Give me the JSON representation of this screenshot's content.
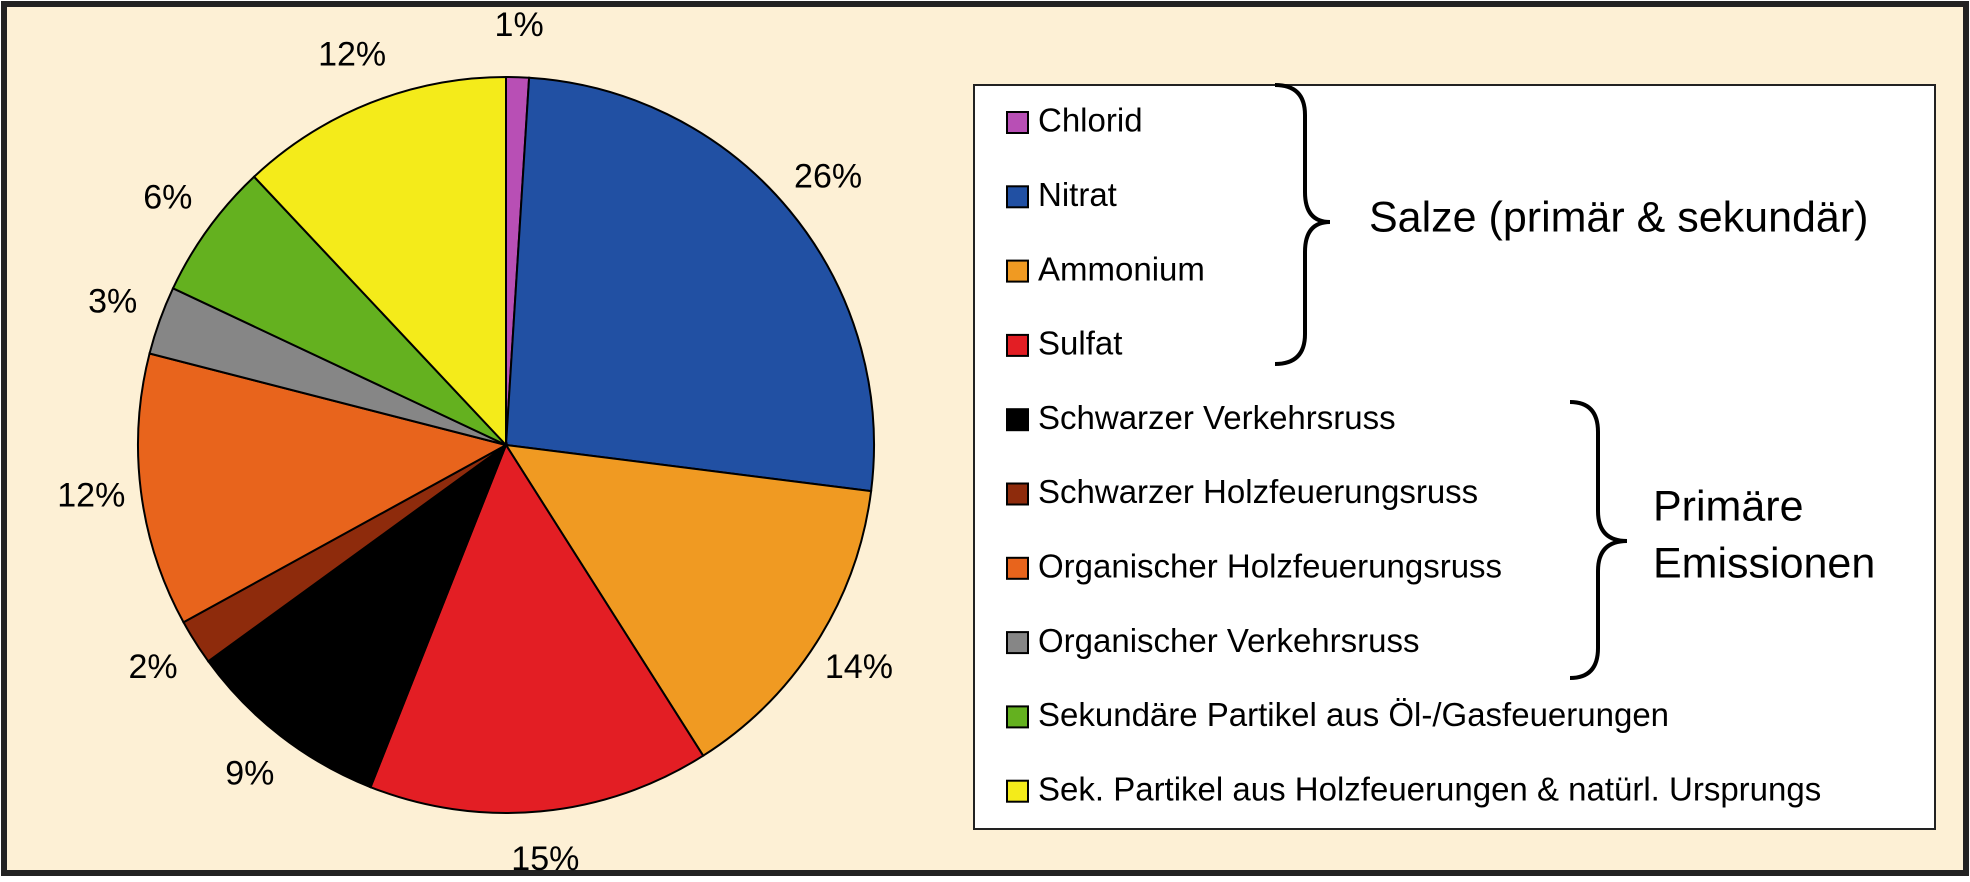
{
  "chart_data": {
    "type": "pie",
    "categories": [
      "Chlorid",
      "Nitrat",
      "Ammonium",
      "Sulfat",
      "Schwarzer Verkehrsruss",
      "Schwarzer Holzfeuerungsruss",
      "Organischer Holzfeuerungsruss",
      "Organischer Verkehrsruss",
      "Sekundäre Partikel aus Öl-/Gasfeuerungen",
      "Sek. Partikel aus Holzfeuerungen & natürl. Ursprungs"
    ],
    "values": [
      1,
      26,
      14,
      15,
      9,
      2,
      12,
      3,
      6,
      12
    ],
    "value_labels": [
      "1%",
      "26%",
      "14%",
      "15%",
      "9%",
      "2%",
      "12%",
      "3%",
      "6%",
      "12%"
    ],
    "colors": [
      "#b84fb5",
      "#2150a3",
      "#f09a22",
      "#e31e24",
      "#000000",
      "#8e2b0c",
      "#e8641c",
      "#868686",
      "#64b11f",
      "#f4eb1a"
    ],
    "legend": "right",
    "groups": [
      {
        "lines": [
          "Salze (primär & sekundär)"
        ]
      },
      {
        "lines": [
          "Primäre",
          "Emissionen"
        ]
      }
    ]
  }
}
